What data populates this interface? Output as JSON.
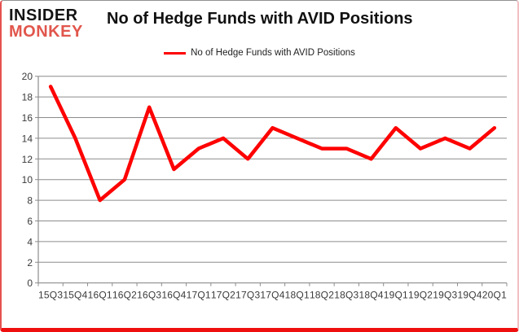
{
  "logo": {
    "line1": "INSIDER",
    "line2": "MONKEY",
    "line1_color": "#141414",
    "line2_color": "#e1564c"
  },
  "header": {
    "title": "No of Hedge Funds with AVID Positions"
  },
  "legend": {
    "label": "No of Hedge Funds with AVID Positions"
  },
  "colors": {
    "line_red": "#fe0000",
    "grid_gray": "#8c8c8c",
    "axis_label": "#3a3a3a",
    "card_bottom_border": "#ee0f0f"
  },
  "chart_data": {
    "type": "line",
    "title": "No of Hedge Funds with AVID Positions",
    "categories": [
      "15Q3",
      "15Q4",
      "16Q1",
      "16Q2",
      "16Q3",
      "16Q4",
      "17Q1",
      "17Q2",
      "17Q3",
      "17Q4",
      "18Q1",
      "18Q2",
      "18Q3",
      "18Q4",
      "19Q1",
      "19Q2",
      "19Q3",
      "19Q4",
      "20Q1"
    ],
    "series": [
      {
        "name": "No of Hedge Funds with AVID Positions",
        "color": "#fe0000",
        "values": [
          19,
          14,
          8,
          10,
          17,
          11,
          13,
          14,
          12,
          15,
          14,
          13,
          13,
          12,
          15,
          13,
          14,
          13,
          15
        ]
      }
    ],
    "ylim": [
      0,
      20
    ],
    "ytick_step": 2,
    "xlabel": "",
    "ylabel": "",
    "grid": true,
    "legend_position": "top-center"
  }
}
